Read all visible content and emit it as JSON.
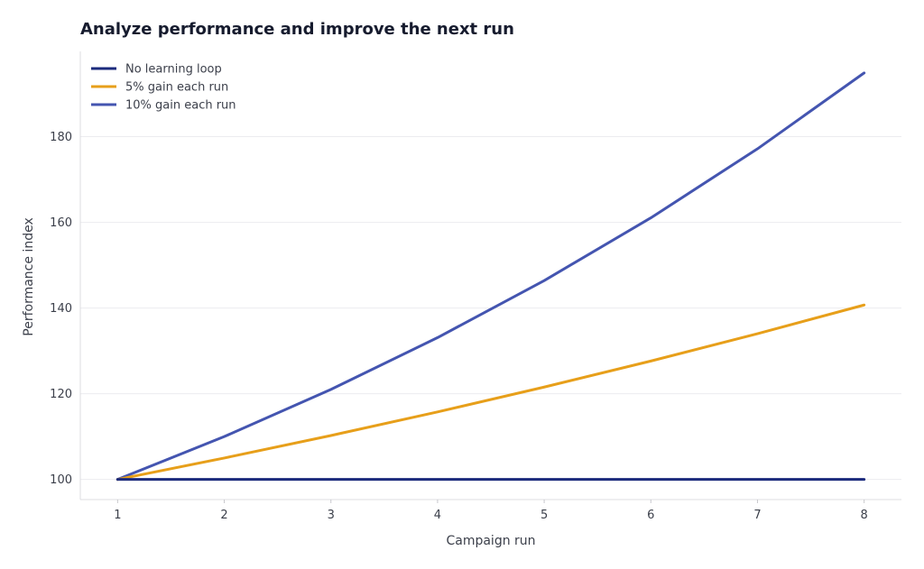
{
  "chart_data": {
    "type": "line",
    "title": "Analyze performance and improve the next run",
    "xlabel": "Campaign run",
    "ylabel": "Performance index",
    "x": [
      1,
      2,
      3,
      4,
      5,
      6,
      7,
      8
    ],
    "xlim": [
      0.65,
      8.35
    ],
    "ylim": [
      95.3,
      199.9
    ],
    "xticks": [
      1,
      2,
      3,
      4,
      5,
      6,
      7,
      8
    ],
    "yticks": [
      100,
      120,
      140,
      160,
      180
    ],
    "grid": "horizontal",
    "legend_position": "top-left",
    "series": [
      {
        "name": "No learning loop",
        "color": "#1b2a7c",
        "values": [
          100,
          100,
          100,
          100,
          100,
          100,
          100,
          100
        ]
      },
      {
        "name": "5% gain each run",
        "color": "#e79f1a",
        "values": [
          100,
          105,
          110.25,
          115.76,
          121.55,
          127.63,
          134.01,
          140.71
        ]
      },
      {
        "name": "10% gain each run",
        "color": "#4455b0",
        "values": [
          100,
          110,
          121,
          133.1,
          146.41,
          161.05,
          177.16,
          194.87
        ]
      }
    ]
  }
}
